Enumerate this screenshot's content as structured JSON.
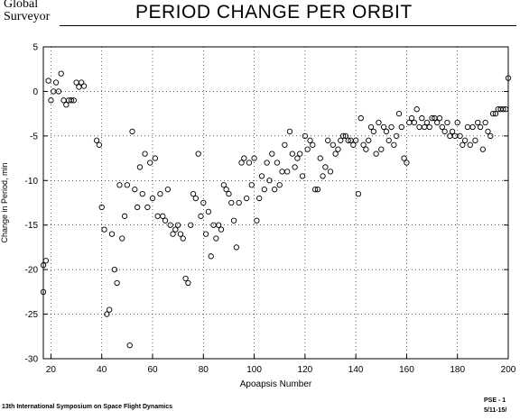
{
  "logo": {
    "line1": "Global",
    "line2": "Surveyor"
  },
  "footer": {
    "left": "13th International Symposium on Space Flight Dynamics",
    "right_top": "PSE - 1",
    "right_bottom": "5/11-15/"
  },
  "chart_data": {
    "type": "scatter",
    "title": "PERIOD CHANGE PER ORBIT",
    "xlabel": "Apoapsis Number",
    "ylabel": "Change in Period, min",
    "xlim": [
      17,
      200
    ],
    "ylim": [
      -30,
      5
    ],
    "xticks": [
      20,
      40,
      60,
      80,
      100,
      120,
      140,
      160,
      180,
      200
    ],
    "yticks": [
      5,
      0,
      -5,
      -10,
      -15,
      -20,
      -25,
      -30
    ],
    "grid": "dotted",
    "marker": "open-circle",
    "series": [
      {
        "points": [
          [
            17,
            -19.5
          ],
          [
            18,
            -19
          ],
          [
            17,
            -22.5
          ],
          [
            19,
            1.2
          ],
          [
            20,
            -1
          ],
          [
            21,
            0
          ],
          [
            22,
            1
          ],
          [
            23,
            0
          ],
          [
            24,
            2
          ],
          [
            25,
            -1
          ],
          [
            26,
            -1.5
          ],
          [
            27,
            -1
          ],
          [
            28,
            -1
          ],
          [
            29,
            -1
          ],
          [
            30,
            1
          ],
          [
            31,
            0.5
          ],
          [
            32,
            1
          ],
          [
            33,
            0.6
          ],
          [
            38,
            -5.5
          ],
          [
            39,
            -6
          ],
          [
            40,
            -13
          ],
          [
            41,
            -15.5
          ],
          [
            42,
            -25
          ],
          [
            43,
            -24.5
          ],
          [
            44,
            -16
          ],
          [
            45,
            -20
          ],
          [
            46,
            -21.5
          ],
          [
            47,
            -10.5
          ],
          [
            48,
            -16.5
          ],
          [
            49,
            -14
          ],
          [
            50,
            -10.5
          ],
          [
            51,
            -28.5
          ],
          [
            52,
            -4.5
          ],
          [
            53,
            -11
          ],
          [
            54,
            -13
          ],
          [
            55,
            -8.5
          ],
          [
            56,
            -11.5
          ],
          [
            57,
            -7
          ],
          [
            58,
            -13
          ],
          [
            59,
            -8
          ],
          [
            60,
            -12
          ],
          [
            61,
            -7.5
          ],
          [
            62,
            -14
          ],
          [
            63,
            -11.5
          ],
          [
            64,
            -14
          ],
          [
            65,
            -14.5
          ],
          [
            66,
            -11
          ],
          [
            67,
            -15
          ],
          [
            68,
            -16
          ],
          [
            69,
            -15.5
          ],
          [
            70,
            -15
          ],
          [
            71,
            -16
          ],
          [
            72,
            -16.5
          ],
          [
            73,
            -21
          ],
          [
            74,
            -21.5
          ],
          [
            75,
            -15
          ],
          [
            76,
            -11.5
          ],
          [
            77,
            -12
          ],
          [
            78,
            -7
          ],
          [
            79,
            -14
          ],
          [
            80,
            -12.5
          ],
          [
            81,
            -16
          ],
          [
            82,
            -13.5
          ],
          [
            83,
            -18.5
          ],
          [
            84,
            -15
          ],
          [
            85,
            -16.5
          ],
          [
            86,
            -15
          ],
          [
            87,
            -15.5
          ],
          [
            88,
            -10.5
          ],
          [
            89,
            -11
          ],
          [
            90,
            -11.5
          ],
          [
            91,
            -12.5
          ],
          [
            92,
            -14.5
          ],
          [
            93,
            -17.5
          ],
          [
            94,
            -12.5
          ],
          [
            95,
            -8
          ],
          [
            96,
            -7.5
          ],
          [
            97,
            -12
          ],
          [
            98,
            -8
          ],
          [
            99,
            -10.5
          ],
          [
            100,
            -7.5
          ],
          [
            101,
            -14.5
          ],
          [
            102,
            -12
          ],
          [
            103,
            -9.5
          ],
          [
            104,
            -11
          ],
          [
            105,
            -8
          ],
          [
            106,
            -10
          ],
          [
            107,
            -7
          ],
          [
            108,
            -11
          ],
          [
            109,
            -8
          ],
          [
            110,
            -10.5
          ],
          [
            111,
            -9
          ],
          [
            112,
            -6
          ],
          [
            113,
            -9
          ],
          [
            114,
            -4.5
          ],
          [
            115,
            -7
          ],
          [
            116,
            -8.5
          ],
          [
            117,
            -7.5
          ],
          [
            118,
            -7
          ],
          [
            119,
            -9.5
          ],
          [
            120,
            -5
          ],
          [
            121,
            -6.5
          ],
          [
            122,
            -5.5
          ],
          [
            123,
            -6
          ],
          [
            124,
            -11
          ],
          [
            125,
            -11
          ],
          [
            126,
            -7.5
          ],
          [
            127,
            -9.5
          ],
          [
            128,
            -8.5
          ],
          [
            129,
            -5.5
          ],
          [
            130,
            -9
          ],
          [
            131,
            -6
          ],
          [
            132,
            -7
          ],
          [
            133,
            -6.5
          ],
          [
            134,
            -5.5
          ],
          [
            135,
            -5
          ],
          [
            136,
            -5
          ],
          [
            137,
            -5.5
          ],
          [
            138,
            -5.5
          ],
          [
            139,
            -6
          ],
          [
            140,
            -5.5
          ],
          [
            141,
            -11.5
          ],
          [
            142,
            -3
          ],
          [
            143,
            -6
          ],
          [
            144,
            -6.5
          ],
          [
            145,
            -5.5
          ],
          [
            146,
            -4
          ],
          [
            147,
            -4.5
          ],
          [
            148,
            -7
          ],
          [
            149,
            -3.5
          ],
          [
            150,
            -6.5
          ],
          [
            151,
            -4
          ],
          [
            152,
            -4.5
          ],
          [
            153,
            -5.5
          ],
          [
            154,
            -4
          ],
          [
            155,
            -6
          ],
          [
            156,
            -5
          ],
          [
            157,
            -2.5
          ],
          [
            158,
            -4
          ],
          [
            159,
            -7.5
          ],
          [
            160,
            -8
          ],
          [
            161,
            -3.5
          ],
          [
            162,
            -3
          ],
          [
            163,
            -3.5
          ],
          [
            164,
            -2
          ],
          [
            165,
            -4
          ],
          [
            166,
            -3
          ],
          [
            167,
            -4
          ],
          [
            168,
            -3.5
          ],
          [
            169,
            -4
          ],
          [
            170,
            -3
          ],
          [
            171,
            -3
          ],
          [
            172,
            -3.5
          ],
          [
            173,
            -3
          ],
          [
            174,
            -4
          ],
          [
            175,
            -4.5
          ],
          [
            176,
            -3.5
          ],
          [
            177,
            -5
          ],
          [
            178,
            -4.5
          ],
          [
            179,
            -5
          ],
          [
            180,
            -3.5
          ],
          [
            181,
            -5
          ],
          [
            182,
            -6
          ],
          [
            183,
            -5.5
          ],
          [
            184,
            -4
          ],
          [
            185,
            -6
          ],
          [
            186,
            -4
          ],
          [
            187,
            -5.5
          ],
          [
            188,
            -3.5
          ],
          [
            189,
            -4
          ],
          [
            190,
            -6.5
          ],
          [
            191,
            -3.5
          ],
          [
            192,
            -4.5
          ],
          [
            193,
            -5
          ],
          [
            194,
            -2.5
          ],
          [
            195,
            -2.5
          ],
          [
            196,
            -2
          ],
          [
            197,
            -2
          ],
          [
            198,
            -2
          ],
          [
            199,
            -2
          ],
          [
            200,
            1.5
          ]
        ]
      }
    ]
  }
}
